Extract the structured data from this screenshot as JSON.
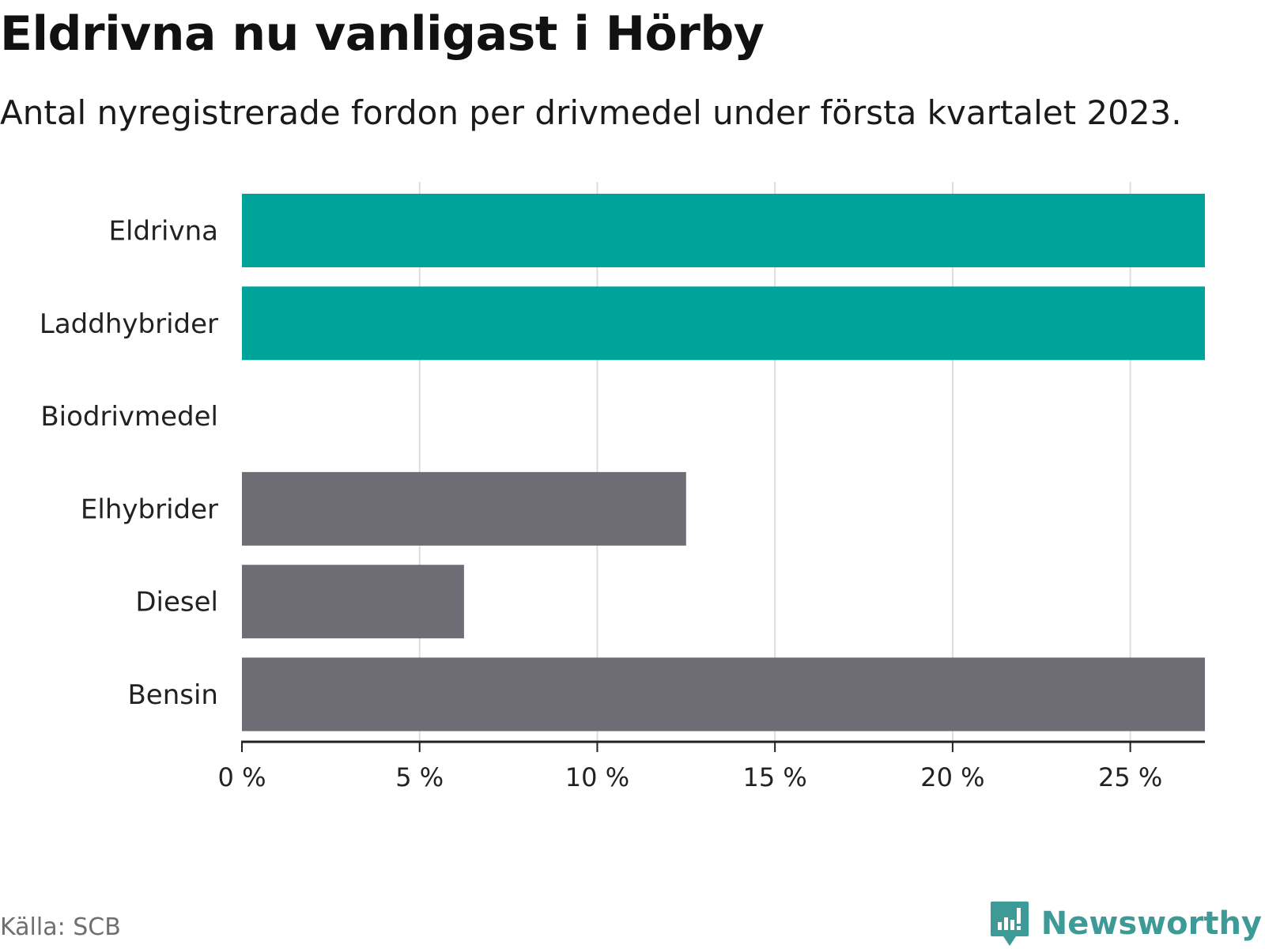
{
  "title": "Eldrivna nu vanligast i Hörby",
  "subtitle": "Antal nyregistrerade fordon per drivmedel under första kvartalet 2023.",
  "source": "Källa: SCB",
  "brand": {
    "name": "Newsworthy",
    "icon": "newsworthy-logo-icon",
    "color": "#3e9a96"
  },
  "colors": {
    "highlight": "#00a39a",
    "other": "#6e6d76",
    "grid": "#dddddd",
    "axis": "#222222"
  },
  "chart_data": {
    "type": "bar",
    "orientation": "horizontal",
    "categories": [
      "Eldrivna",
      "Laddhybrider",
      "Biodrivmedel",
      "Elhybrider",
      "Diesel",
      "Bensin"
    ],
    "values": [
      27.1,
      27.1,
      0,
      12.5,
      6.25,
      27.1
    ],
    "highlight": [
      true,
      true,
      false,
      false,
      false,
      false
    ],
    "xlim": [
      0,
      27.1
    ],
    "xticks": [
      0,
      5,
      10,
      15,
      20,
      25
    ],
    "xtick_labels": [
      "0 %",
      "5 %",
      "10 %",
      "15 %",
      "20 %",
      "25 %"
    ],
    "grid": true,
    "xlabel": "",
    "ylabel": ""
  }
}
